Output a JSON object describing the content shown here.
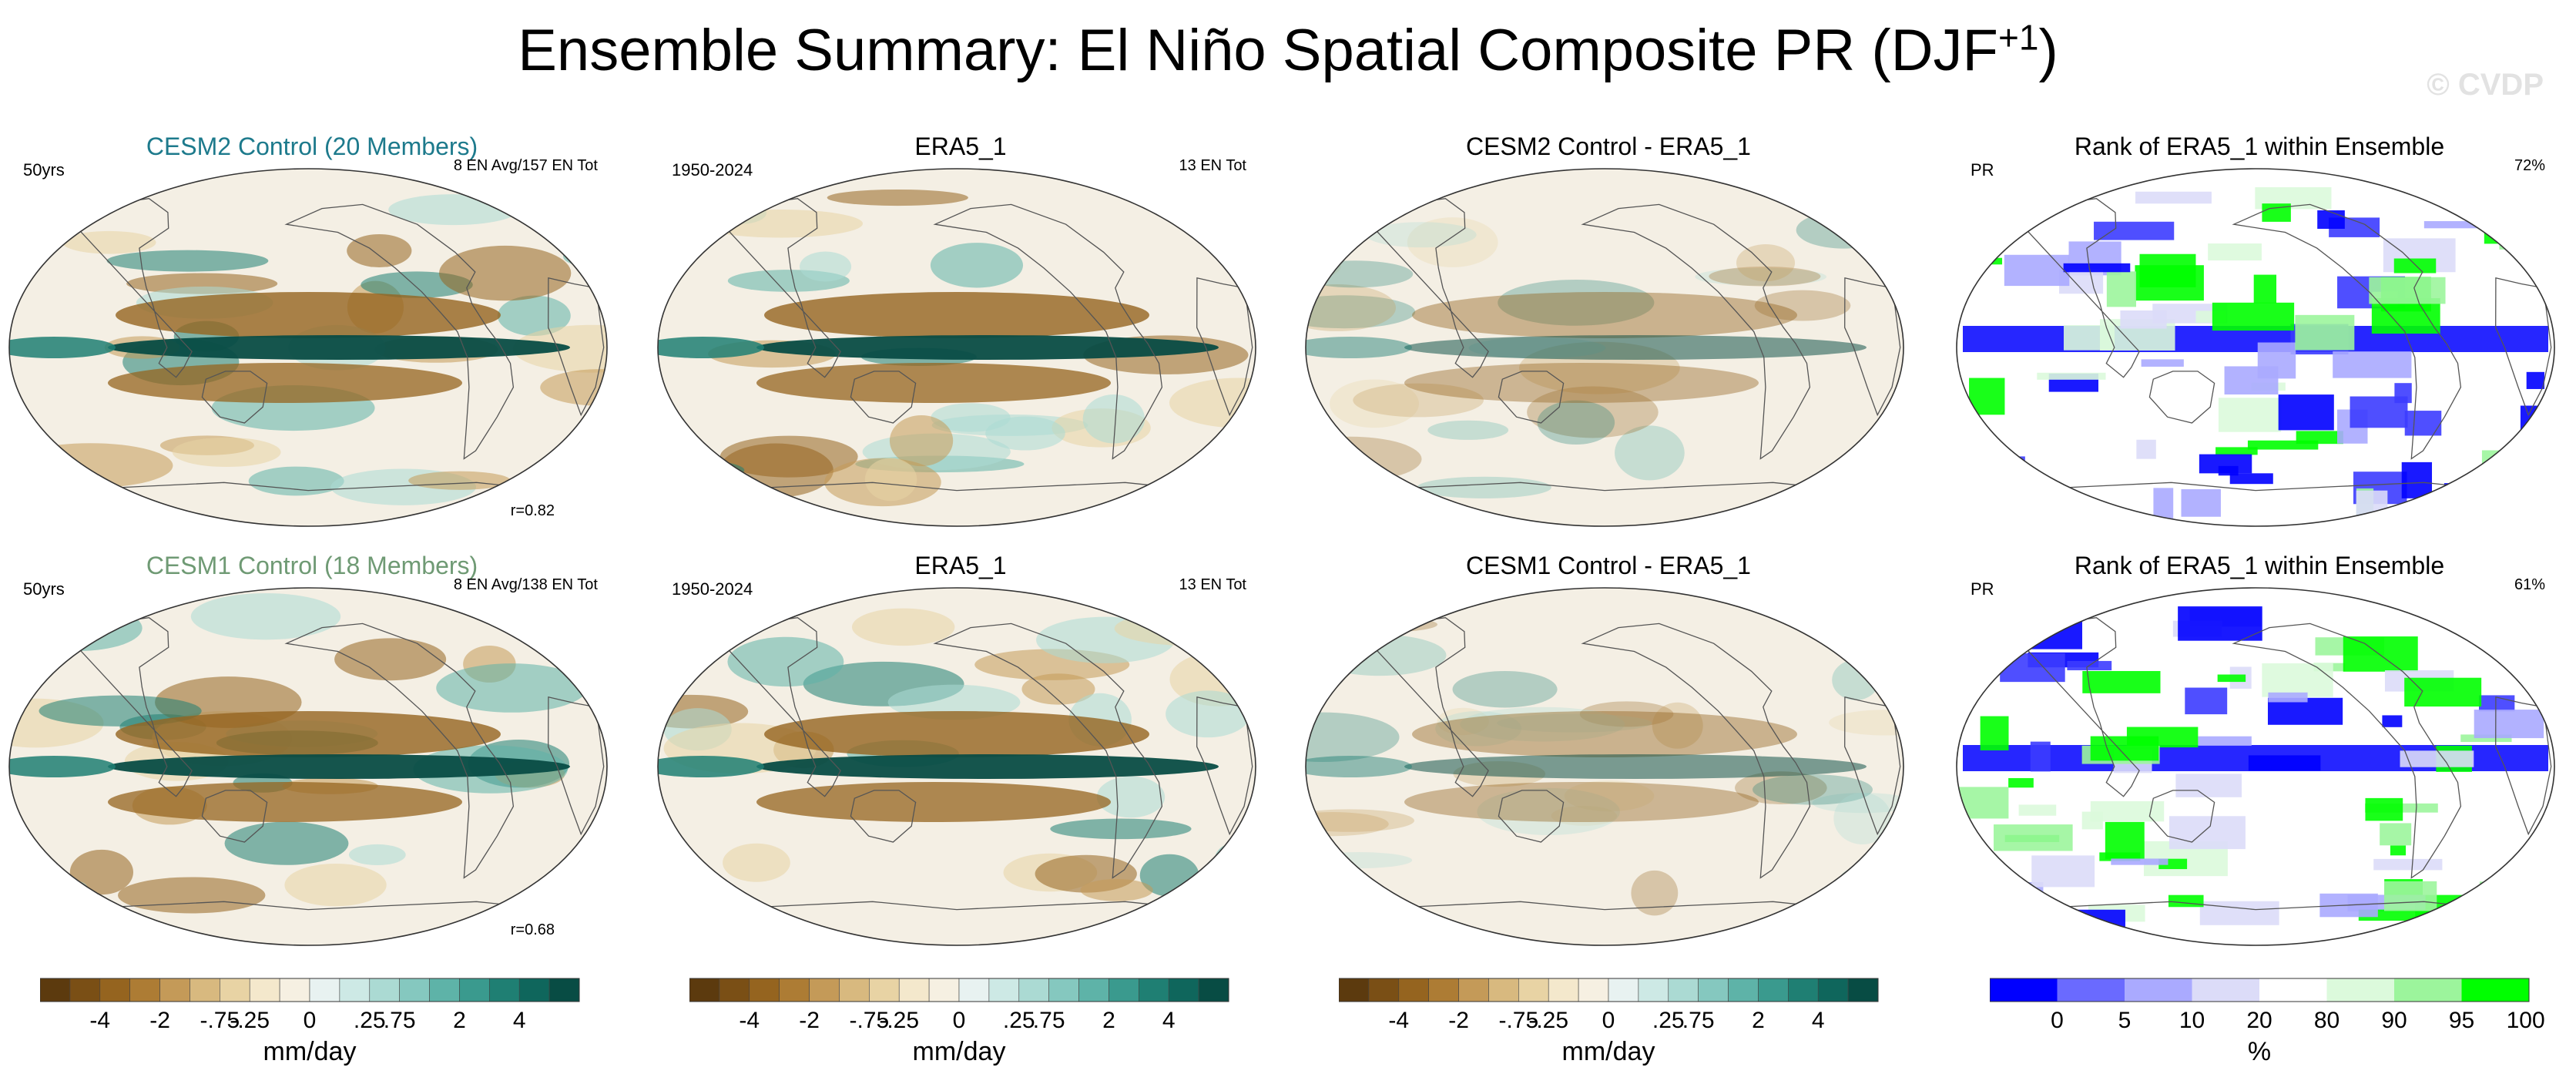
{
  "header": {
    "title_main": "Ensemble Summary: El Niño Spatial Composite PR (DJF",
    "title_sup": "+1",
    "title_end": ")",
    "watermark": "© CVDP"
  },
  "panels": [
    {
      "title": "CESM2 Control (20 Members)",
      "title_color": "#1d7a8c",
      "left_label": "50yrs",
      "right_label": "8 EN Avg/157 EN Tot",
      "bottom_label": "r=0.82",
      "kind": "model"
    },
    {
      "title": "ERA5_1",
      "title_color": "#000000",
      "left_label": "1950-2024",
      "right_label": "13 EN Tot",
      "bottom_label": "",
      "kind": "obs"
    },
    {
      "title": "CESM2 Control - ERA5_1",
      "title_color": "#000000",
      "left_label": "",
      "right_label": "",
      "bottom_label": "",
      "kind": "diff"
    },
    {
      "title": "Rank of ERA5_1 within Ensemble",
      "title_color": "#000000",
      "left_label": "PR",
      "right_label": "72%",
      "bottom_label": "",
      "kind": "rank"
    },
    {
      "title": "CESM1 Control (18 Members)",
      "title_color": "#6f9a74",
      "left_label": "50yrs",
      "right_label": "8 EN Avg/138 EN Tot",
      "bottom_label": "r=0.68",
      "kind": "model"
    },
    {
      "title": "ERA5_1",
      "title_color": "#000000",
      "left_label": "1950-2024",
      "right_label": "13 EN Tot",
      "bottom_label": "",
      "kind": "obs"
    },
    {
      "title": "CESM1 Control - ERA5_1",
      "title_color": "#000000",
      "left_label": "",
      "right_label": "",
      "bottom_label": "",
      "kind": "diff"
    },
    {
      "title": "Rank of ERA5_1 within Ensemble",
      "title_color": "#000000",
      "left_label": "PR",
      "right_label": "61%",
      "bottom_label": "",
      "kind": "rank"
    }
  ],
  "chart_data": {
    "type": "heatmap",
    "projection": "Robinson",
    "variable": "PR",
    "season": "DJF+1",
    "colorbars": [
      {
        "label": "mm/day",
        "tick_labels": [
          "-4",
          "-2",
          "-.75",
          "-.25",
          "0",
          ".25",
          ".75",
          "2",
          "4"
        ],
        "colors": [
          "#5c3a0e",
          "#7a4f15",
          "#95641f",
          "#ad7c34",
          "#c49a58",
          "#d8b97f",
          "#e8d3a4",
          "#f4e8cc",
          "#f6f0e2",
          "#e8f2f1",
          "#cde9e5",
          "#abdad3",
          "#85c8bf",
          "#5eb3a8",
          "#3a9a8e",
          "#1f7f73",
          "#0f665c",
          "#084c44"
        ]
      },
      {
        "label": "%",
        "tick_labels": [
          "0",
          "5",
          "10",
          "20",
          "80",
          "90",
          "95",
          "100"
        ],
        "colors": [
          "#0000ff",
          "#6a6aff",
          "#aaaaff",
          "#dcdcf8",
          "#ffffff",
          "#dcfadc",
          "#9cf59c",
          "#00ff00"
        ]
      }
    ]
  }
}
